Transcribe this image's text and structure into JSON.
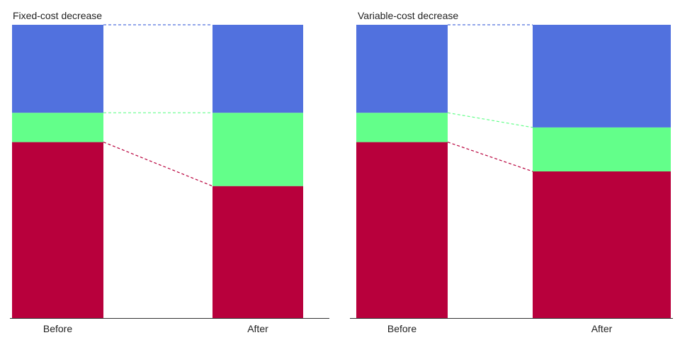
{
  "colors": {
    "variable_cost": "#b8003c",
    "fixed_cost": "#63ff8a",
    "profit": "#5171de",
    "axis": "#333333",
    "background": "#ffffff"
  },
  "chart_data": [
    {
      "type": "bar",
      "stacked": true,
      "title": "Fixed-cost decrease",
      "categories": [
        "Before",
        "After"
      ],
      "ylim": [
        0,
        100
      ],
      "grid": false,
      "legend": "none",
      "connectors": "dashed",
      "series": [
        {
          "color_key": "variable_cost",
          "values": [
            60,
            45
          ]
        },
        {
          "color_key": "fixed_cost",
          "values": [
            10,
            25
          ]
        },
        {
          "color_key": "profit",
          "values": [
            30,
            30
          ]
        }
      ]
    },
    {
      "type": "bar",
      "stacked": true,
      "title": "Variable-cost decrease",
      "categories": [
        "Before",
        "After"
      ],
      "ylim": [
        0,
        100
      ],
      "grid": false,
      "legend": "none",
      "connectors": "dashed",
      "series": [
        {
          "color_key": "variable_cost",
          "values": [
            60,
            50
          ]
        },
        {
          "color_key": "fixed_cost",
          "values": [
            10,
            15
          ]
        },
        {
          "color_key": "profit",
          "values": [
            30,
            35
          ]
        }
      ]
    }
  ]
}
